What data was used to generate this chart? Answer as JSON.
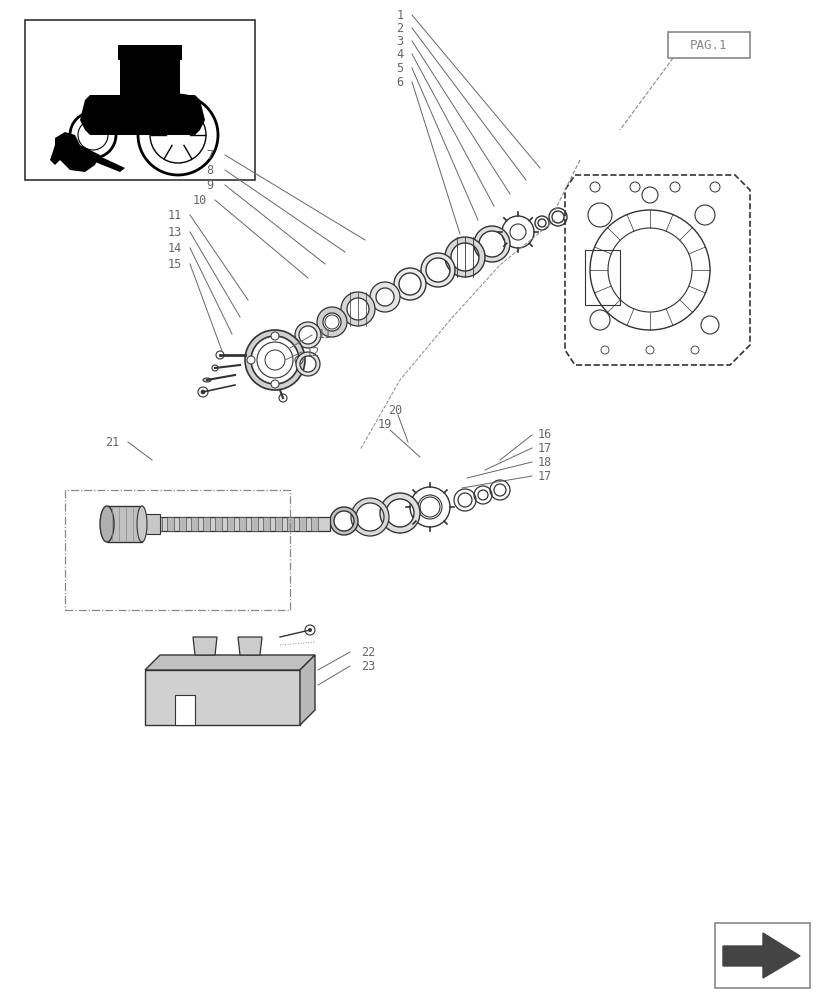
{
  "bg_color": "#ffffff",
  "line_color": "#333333",
  "label_color": "#555555",
  "gray": "#888888",
  "pag_label": "PAG.1"
}
